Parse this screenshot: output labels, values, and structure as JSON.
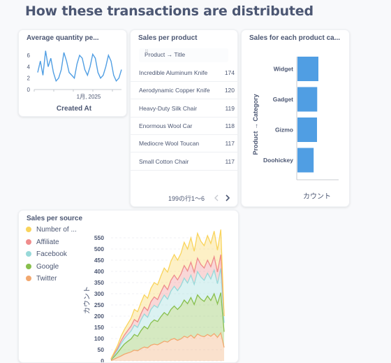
{
  "page_title": "How these transactions are distributed",
  "colors": {
    "accent": "#509ee3",
    "text": "#4c5773",
    "muted": "#949aab"
  },
  "quantity_card": {
    "title": "Average quantity pe...",
    "x_label": "Created At",
    "chart_data": {
      "type": "line",
      "title": "Average quantity pe...",
      "xlabel": "Created At",
      "ylabel": "",
      "x_tick": "1月, 2025",
      "yticks": [
        "0",
        "2",
        "4",
        "6"
      ],
      "ylim": [
        0,
        7
      ],
      "series": [
        {
          "values": [
            3,
            5,
            2.5,
            6.8,
            4,
            5.5,
            3,
            1.5,
            2,
            3.5,
            6.5,
            5,
            3,
            2.5,
            2,
            4.5,
            6,
            5.5,
            3.5,
            2.5,
            4,
            6.2,
            5.5,
            3,
            2,
            2.5,
            4,
            6,
            5,
            2.5,
            1.5,
            2,
            3.5
          ]
        }
      ]
    }
  },
  "products_card": {
    "title": "Sales per product",
    "column_header": "Product → Title",
    "rows": [
      {
        "name": "Incredible Aluminum Knife",
        "value": "174"
      },
      {
        "name": "Aerodynamic Copper Knife",
        "value": "120"
      },
      {
        "name": "Heavy-Duty Silk Chair",
        "value": "119"
      },
      {
        "name": "Enormous Wool Car",
        "value": "118"
      },
      {
        "name": "Mediocre Wool Toucan",
        "value": "117"
      },
      {
        "name": "Small Cotton Chair",
        "value": "117"
      }
    ],
    "pagination": "199の行1〜6",
    "prev_icon": "chevron-left-icon",
    "next_icon": "chevron-right-icon"
  },
  "category_card": {
    "title": "Sales for each product ca...",
    "chart_data": {
      "type": "bar",
      "orientation": "horizontal",
      "title": "Sales for each product ca...",
      "xlabel": "カウント",
      "ylabel": "Product → Category",
      "categories": [
        "Widget",
        "Gadget",
        "Gizmo",
        "Doohickey"
      ],
      "values": [
        1060,
        1000,
        990,
        820
      ]
    }
  },
  "source_card": {
    "title": "Sales per source",
    "legend": [
      {
        "label": "Number of ...",
        "color": "#f9d45c"
      },
      {
        "label": "Affiliate",
        "color": "#ef8c8c"
      },
      {
        "label": "Facebook",
        "color": "#98d9d9"
      },
      {
        "label": "Google",
        "color": "#88bf4d"
      },
      {
        "label": "Twitter",
        "color": "#f2a86f"
      }
    ],
    "chart_data": {
      "type": "area",
      "stacked": true,
      "title": "Sales per source",
      "ylabel": "カウント",
      "yticks": [
        "0",
        "50",
        "100",
        "150",
        "200",
        "250",
        "300",
        "350",
        "400",
        "450",
        "500",
        "550"
      ],
      "ylim": [
        0,
        575
      ],
      "series": [
        {
          "name": "Twitter",
          "color": "#f2a86f",
          "values": [
            2,
            8,
            15,
            22,
            30,
            35,
            40,
            48,
            45,
            55,
            62,
            58,
            70,
            75,
            72,
            80,
            88,
            84,
            95,
            100,
            92,
            98,
            110,
            104,
            115,
            102,
            120,
            112,
            108,
            118,
            110,
            122,
            105,
            125,
            60
          ]
        },
        {
          "name": "Google",
          "color": "#88bf4d",
          "values": [
            3,
            12,
            22,
            35,
            45,
            52,
            58,
            70,
            65,
            80,
            92,
            85,
            100,
            108,
            104,
            118,
            128,
            120,
            135,
            145,
            138,
            148,
            162,
            152,
            168,
            150,
            175,
            165,
            158,
            172,
            160,
            178,
            150,
            180,
            70
          ]
        },
        {
          "name": "Facebook",
          "color": "#98d9d9",
          "values": [
            2,
            8,
            12,
            20,
            25,
            30,
            35,
            42,
            40,
            48,
            55,
            52,
            60,
            65,
            62,
            70,
            78,
            72,
            82,
            88,
            84,
            90,
            98,
            92,
            100,
            90,
            104,
            98,
            94,
            102,
            96,
            106,
            90,
            108,
            40
          ]
        },
        {
          "name": "Affiliate",
          "color": "#ef8c8c",
          "values": [
            1,
            5,
            8,
            12,
            15,
            18,
            22,
            25,
            24,
            28,
            32,
            30,
            35,
            38,
            36,
            40,
            44,
            42,
            48,
            50,
            48,
            52,
            56,
            54,
            58,
            54,
            60,
            56,
            55,
            58,
            55,
            60,
            52,
            62,
            30
          ]
        },
        {
          "name": "Number of ...",
          "color": "#f9d45c",
          "values": [
            2,
            7,
            13,
            21,
            25,
            30,
            35,
            45,
            46,
            49,
            54,
            55,
            60,
            64,
            66,
            72,
            77,
            79,
            85,
            92,
            88,
            92,
            104,
            98,
            109,
            94,
            111,
            104,
            100,
            110,
            104,
            114,
            98,
            112,
            0
          ]
        }
      ]
    }
  }
}
